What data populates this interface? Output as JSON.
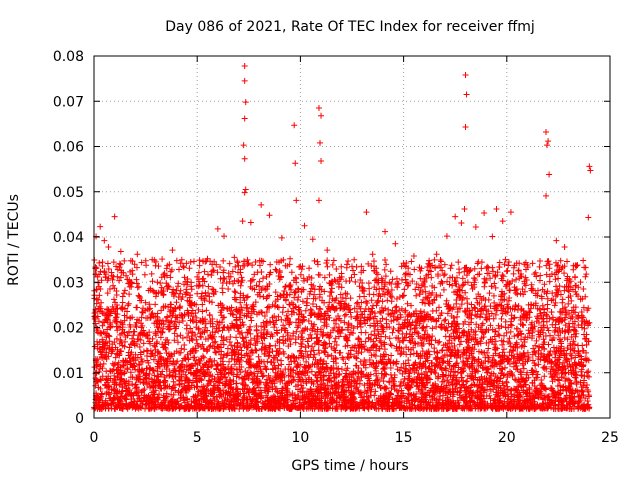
{
  "chart_data": {
    "type": "scatter",
    "title": "Day 086 of 2021, Rate Of TEC Index for receiver ffmj",
    "xlabel": "GPS time / hours",
    "ylabel": "ROTI / TECUs",
    "xlim": [
      0,
      25
    ],
    "ylim": [
      0,
      0.08
    ],
    "xticks": [
      "0",
      "5",
      "10",
      "15",
      "20",
      "25"
    ],
    "yticks": [
      "0",
      "0.01",
      "0.02",
      "0.03",
      "0.04",
      "0.05",
      "0.06",
      "0.07",
      "0.08"
    ],
    "grid": true,
    "marker": "+",
    "series_color": "#ff0000",
    "series": [
      {
        "name": "ROTI",
        "x": [
          7.3,
          7.3,
          7.35,
          7.3,
          7.25,
          7.3,
          7.35,
          7.3,
          7.2,
          9.7,
          9.75,
          9.8,
          10.9,
          11.0,
          10.95,
          11.0,
          10.9,
          18.0,
          18.05,
          18.0,
          17.95,
          21.9,
          22.0,
          21.95,
          22.05,
          21.9,
          24.0,
          24.05,
          23.95,
          0.1,
          0.3,
          0.5,
          0.7,
          1.0,
          1.3,
          2.1,
          3.0,
          3.3,
          3.8,
          4.2,
          5.0,
          5.5,
          6.0,
          6.3,
          6.8,
          7.6,
          8.1,
          8.5,
          9.1,
          9.5,
          10.2,
          10.6,
          11.3,
          12.0,
          12.5,
          13.2,
          13.5,
          14.1,
          14.6,
          15.0,
          15.5,
          16.2,
          16.6,
          17.1,
          17.5,
          17.8,
          18.5,
          18.9,
          19.3,
          19.5,
          19.8,
          20.2,
          20.6,
          21.0,
          21.4,
          22.4,
          22.8,
          23.3,
          23.7,
          0.2,
          1.5,
          2.5,
          3.5,
          4.5,
          5.2,
          6.5,
          7.0,
          8.0,
          9.0,
          10.0,
          11.5,
          12.2,
          13.0,
          14.0,
          15.2,
          16.0,
          17.0,
          18.2,
          19.0,
          20.0,
          21.2,
          22.2,
          23.0,
          23.8
        ],
        "y": [
          0.0778,
          0.0745,
          0.0698,
          0.0662,
          0.0603,
          0.0573,
          0.0505,
          0.0498,
          0.0435,
          0.0647,
          0.0563,
          0.0481,
          0.0685,
          0.0668,
          0.0608,
          0.0568,
          0.0481,
          0.0758,
          0.0715,
          0.0643,
          0.0462,
          0.0632,
          0.0612,
          0.0603,
          0.0538,
          0.0491,
          0.0556,
          0.0547,
          0.0443,
          0.0401,
          0.0423,
          0.0392,
          0.0378,
          0.0445,
          0.0368,
          0.0362,
          0.0345,
          0.0351,
          0.0371,
          0.0342,
          0.0312,
          0.0352,
          0.0418,
          0.0402,
          0.0355,
          0.0432,
          0.0471,
          0.0448,
          0.0398,
          0.0352,
          0.0425,
          0.0395,
          0.0371,
          0.0312,
          0.0335,
          0.0455,
          0.0362,
          0.0412,
          0.0385,
          0.0342,
          0.0358,
          0.0341,
          0.0362,
          0.0402,
          0.0445,
          0.0431,
          0.0422,
          0.0453,
          0.0401,
          0.0462,
          0.0435,
          0.0455,
          0.0342,
          0.0338,
          0.0321,
          0.0392,
          0.0378,
          0.0312,
          0.0348,
          0.0261,
          0.0282,
          0.0255,
          0.0298,
          0.0276,
          0.0268,
          0.0285,
          0.0302,
          0.0291,
          0.0322,
          0.0335,
          0.0278,
          0.0251,
          0.0288,
          0.0274,
          0.0292,
          0.0301,
          0.0318,
          0.0325,
          0.0305,
          0.0295,
          0.0282,
          0.0276,
          0.0291,
          0.0268
        ],
        "dense_band": {
          "x_range": [
            0,
            24
          ],
          "y_range": [
            0.002,
            0.025
          ],
          "peak_envelope": 0.035
        }
      }
    ]
  }
}
